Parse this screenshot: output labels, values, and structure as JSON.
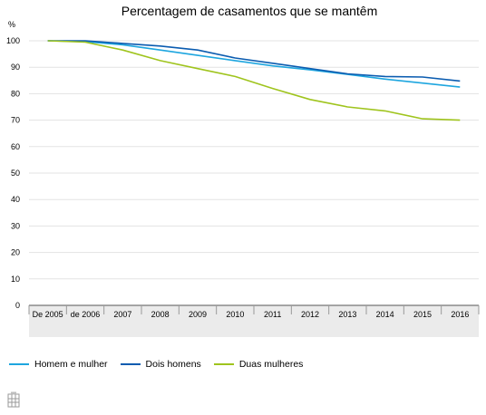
{
  "chart_data": {
    "type": "line",
    "title": "Percentagem de casamentos que se mantêm",
    "ylabel": "%",
    "xlabel": "",
    "categories": [
      "De 2005",
      "de 2006",
      "2007",
      "2008",
      "2009",
      "2010",
      "2011",
      "2012",
      "2013",
      "2014",
      "2015",
      "2016"
    ],
    "ylim": [
      0,
      100
    ],
    "yticks": [
      "0",
      "10",
      "20",
      "30",
      "40",
      "50",
      "60",
      "70",
      "80",
      "90",
      "100"
    ],
    "grid": true,
    "legend_position": "bottom",
    "series": [
      {
        "name": "Homem e mulher",
        "color": "#1ea6df",
        "values": [
          100,
          99.7,
          98.5,
          96.5,
          94.5,
          92.5,
          90.5,
          89,
          87.3,
          85.5,
          84,
          82.5
        ]
      },
      {
        "name": "Dois homens",
        "color": "#0b5cb0",
        "values": [
          100,
          100,
          99,
          98,
          96.5,
          93.5,
          91.5,
          89.5,
          87.5,
          86.5,
          86.3,
          84.8
        ]
      },
      {
        "name": "Duas mulheres",
        "color": "#9fc41d",
        "values": [
          100,
          99.5,
          96.5,
          92.5,
          89.5,
          86.5,
          82,
          77.8,
          75,
          73.5,
          70.5,
          70
        ]
      }
    ]
  },
  "corner_icon": "table-icon"
}
